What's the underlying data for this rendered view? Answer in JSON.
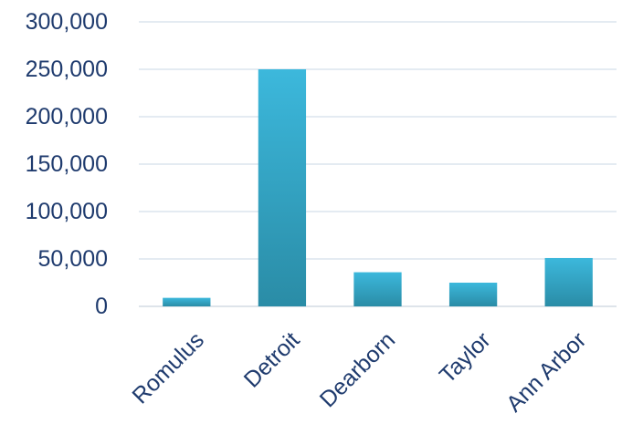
{
  "chart_data": {
    "type": "bar",
    "title": "",
    "xlabel": "",
    "ylabel": "",
    "categories": [
      "Romulus",
      "Detroit",
      "Dearborn",
      "Taylor",
      "Ann Arbor"
    ],
    "values": [
      9000,
      250000,
      36000,
      25000,
      51000
    ],
    "ylim": [
      0,
      300000
    ],
    "yticks": [
      0,
      50000,
      100000,
      150000,
      200000,
      250000,
      300000
    ],
    "ytick_labels": [
      "0",
      "50,000",
      "100,000",
      "150,000",
      "200,000",
      "250,000",
      "300,000"
    ],
    "grid": true,
    "legend": "none",
    "colors": {
      "bar_top": "#3cb8dc",
      "bar_bottom": "#2a8ca6",
      "grid": "#d4dfe9",
      "axis": "#c9d4de",
      "text": "#1f3b6e"
    }
  }
}
